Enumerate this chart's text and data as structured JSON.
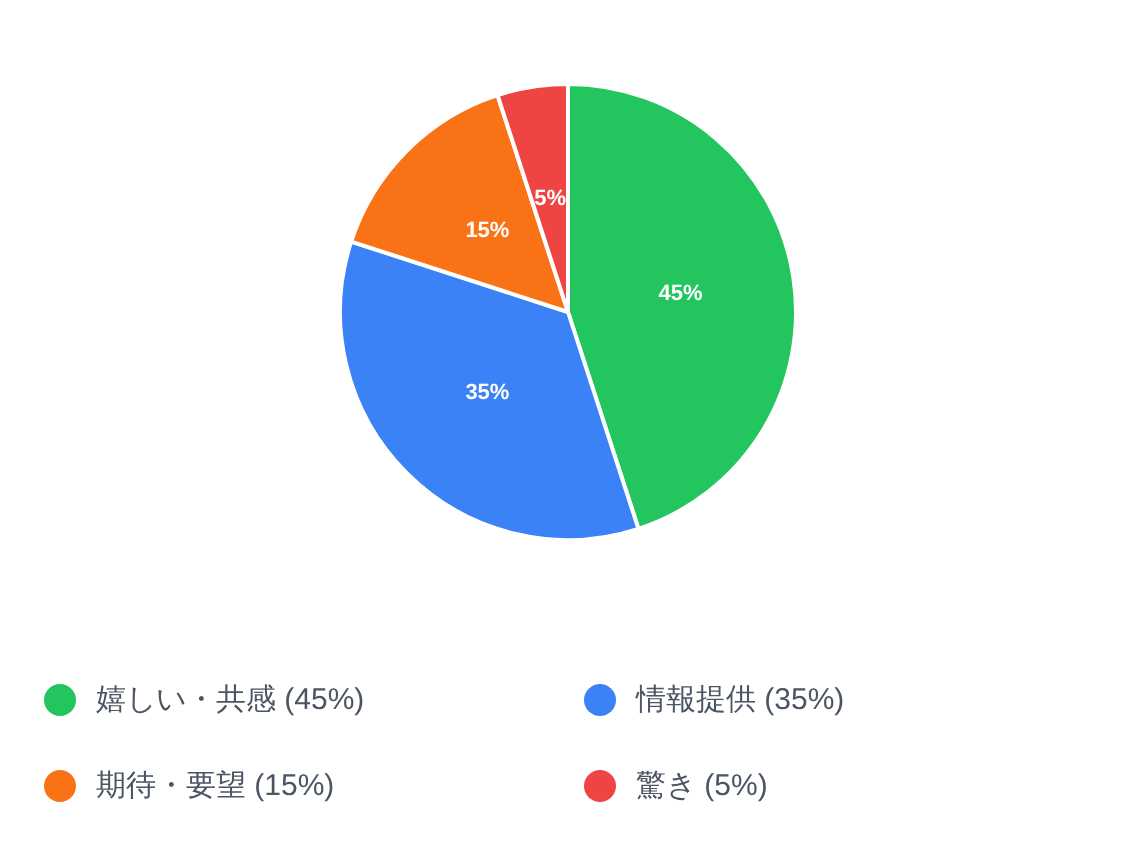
{
  "chart_data": {
    "type": "pie",
    "categories": [
      "嬉しい・共感 (45%)",
      "情報提供 (35%)",
      "期待・要望 (15%)",
      "驚き (5%)"
    ],
    "values": [
      45,
      35,
      15,
      5
    ],
    "colors": [
      "#22c55e",
      "#3b82f6",
      "#f97316",
      "#ef4444"
    ],
    "value_labels": [
      "45%",
      "35%",
      "15%",
      "5%"
    ],
    "legend": "bottom"
  }
}
